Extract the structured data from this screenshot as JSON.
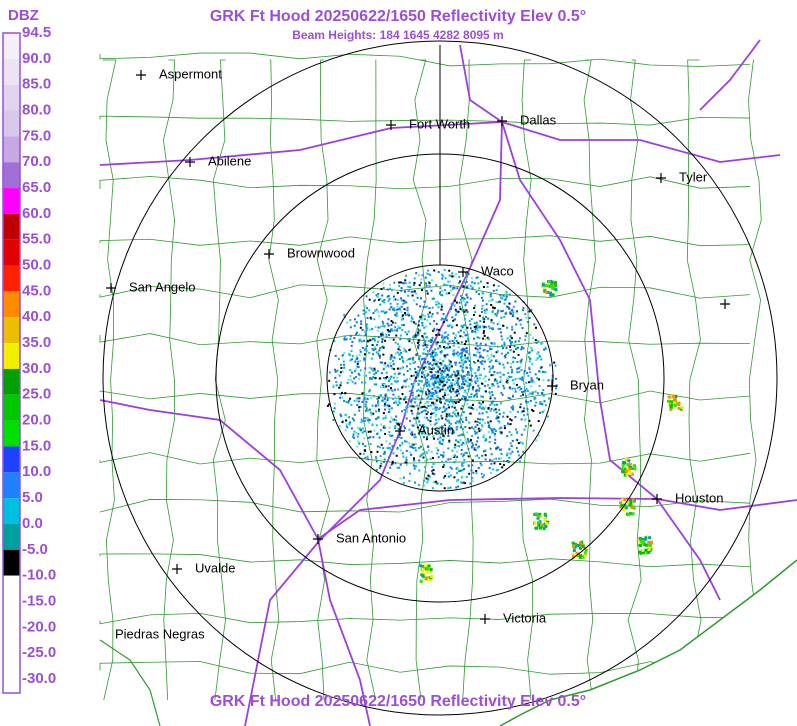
{
  "header": {
    "title": "GRK Ft Hood 20250622/1650 Reflectivity Elev 0.5°",
    "subtitle": "Beam Heights: 184 1645 4282 8095 m"
  },
  "legend": {
    "label": "DBZ",
    "ticks": [
      "94.5",
      "90.0",
      "85.0",
      "80.0",
      "75.0",
      "70.0",
      "65.0",
      "60.0",
      "55.0",
      "50.0",
      "45.0",
      "40.0",
      "35.0",
      "30.0",
      "25.0",
      "20.0",
      "15.0",
      "10.0",
      "5.0",
      "0.0",
      "-5.0",
      "-10.0",
      "-15.0",
      "-20.0",
      "-25.0",
      "-30.0"
    ]
  },
  "cities": [
    {
      "name": "Aspermont"
    },
    {
      "name": "Fort Worth"
    },
    {
      "name": "Dallas"
    },
    {
      "name": "Abilene"
    },
    {
      "name": "Tyler"
    },
    {
      "name": "Brownwood"
    },
    {
      "name": "Waco"
    },
    {
      "name": "San Angelo"
    },
    {
      "name": "Bryan"
    },
    {
      "name": "Austin"
    },
    {
      "name": "Houston"
    },
    {
      "name": "San Antonio"
    },
    {
      "name": "Uvalde"
    },
    {
      "name": "Victoria"
    },
    {
      "name": "Piedras Negras"
    }
  ]
}
